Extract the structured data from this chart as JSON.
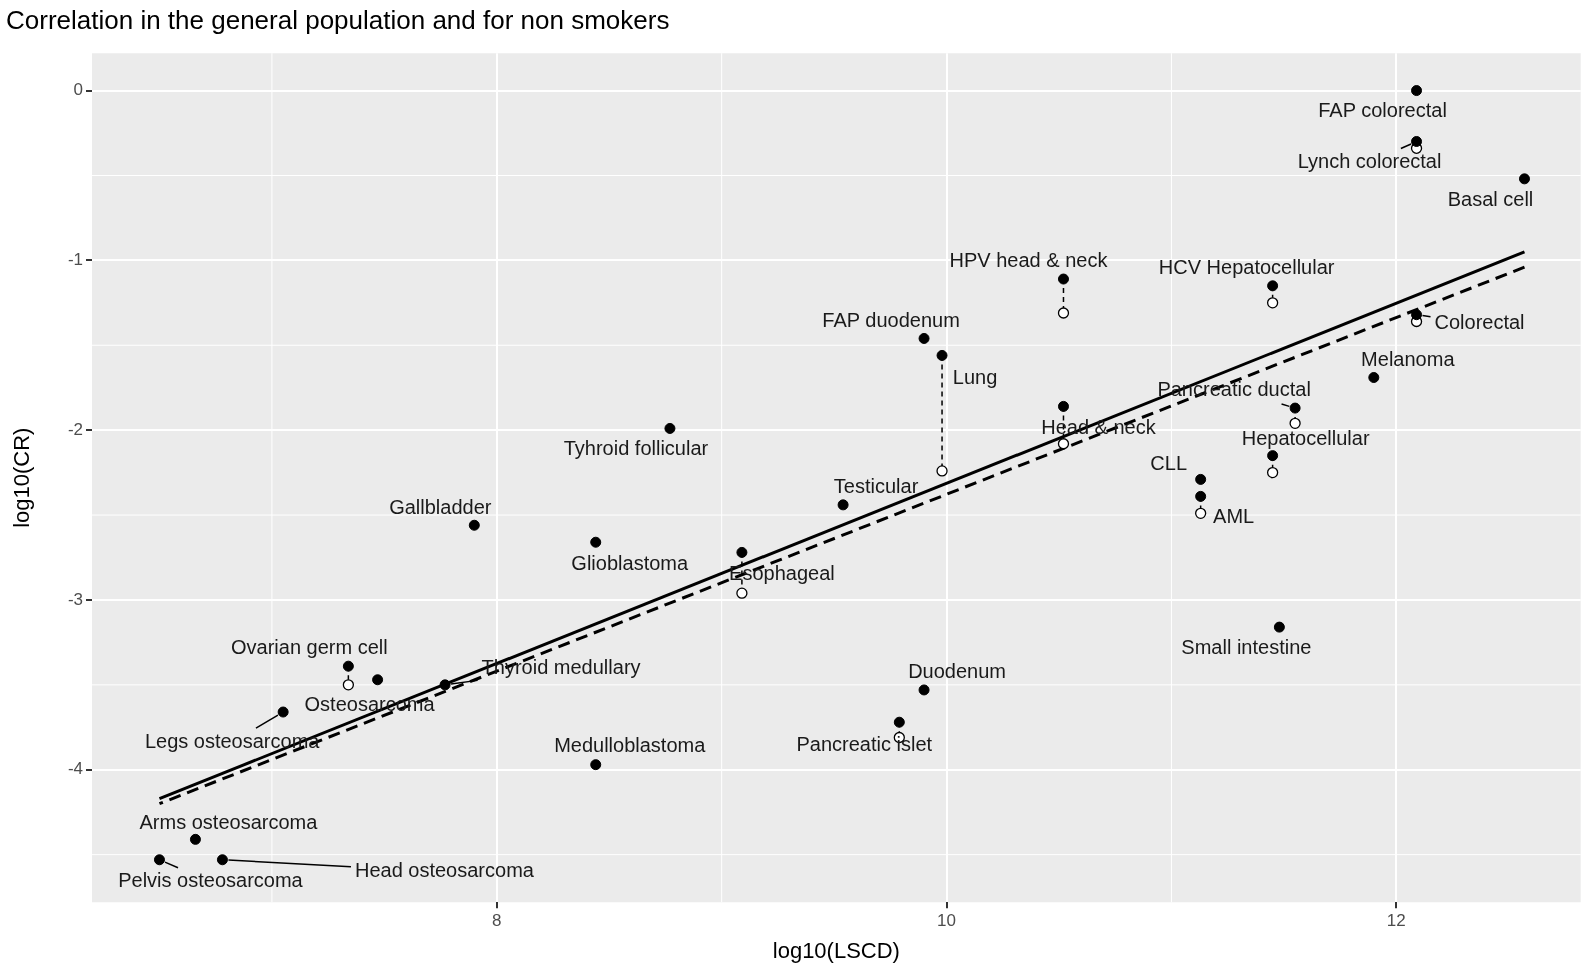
{
  "chart_data": {
    "type": "scatter",
    "title": "Correlation in the general population and for non smokers",
    "xlabel": "log10(LSCD)",
    "ylabel": "log10(CR)",
    "x": [
      12.09,
      12.09,
      12.57,
      10.52,
      11.45,
      12.09,
      9.9,
      9.98,
      11.9,
      11.55,
      10.52,
      8.77,
      11.45,
      11.13,
      11.13,
      9.54,
      7.9,
      8.44,
      9.09,
      11.48,
      7.34,
      7.47,
      7.77,
      7.05,
      9.9,
      9.79,
      8.44,
      6.66,
      6.5,
      6.78
    ],
    "series": [
      {
        "type": "scatter",
        "color": "#000000",
        "values": [
          0.0,
          -0.3,
          -0.52,
          -1.11,
          -1.15,
          -1.32,
          -1.46,
          -1.56,
          -1.69,
          -1.87,
          -1.86,
          -1.99,
          -2.15,
          -2.29,
          -2.39,
          -2.44,
          -2.56,
          -2.66,
          -2.72,
          -3.16,
          -3.39,
          -3.47,
          -3.5,
          -3.66,
          -3.53,
          -3.72,
          -3.97,
          -4.41,
          -4.53,
          -4.53
        ]
      },
      {
        "type": "scatter",
        "color": "#000000",
        "values": [
          null,
          -0.34,
          null,
          -1.31,
          -1.25,
          -1.36,
          null,
          -2.24,
          null,
          -1.96,
          -2.08,
          null,
          -2.25,
          null,
          -2.49,
          null,
          null,
          null,
          -2.96,
          null,
          -3.5,
          null,
          null,
          null,
          null,
          -3.81,
          null,
          null,
          null,
          null
        ]
      },
      {
        "type": "line",
        "color": "#000000",
        "line_style": "solid",
        "marker": "none",
        "values": [
          null,
          null,
          -0.95,
          null,
          null,
          null,
          null,
          null,
          null,
          null,
          null,
          null,
          null,
          null,
          null,
          null,
          null,
          null,
          null,
          null,
          null,
          null,
          null,
          null,
          null,
          null,
          null,
          null,
          -4.17,
          null
        ]
      },
      {
        "type": "line",
        "color": "#000000",
        "line_style": "dashed",
        "marker": "none",
        "values": [
          null,
          null,
          -1.04,
          null,
          null,
          null,
          null,
          null,
          null,
          null,
          null,
          null,
          null,
          null,
          null,
          null,
          null,
          null,
          null,
          null,
          null,
          null,
          null,
          null,
          null,
          null,
          null,
          null,
          -4.2,
          null
        ]
      }
    ],
    "xlim": [
      6.2,
      12.82
    ],
    "xticks": [
      8,
      10,
      12
    ],
    "ylim": [
      -4.78,
      0.22
    ],
    "yticks": [
      -4,
      -3,
      -2,
      -1,
      0
    ],
    "grid": true,
    "legend": false,
    "marker": "circle",
    "annotations": [
      {
        "text": "FAP colorectal",
        "x": 12.09,
        "y": 0.0
      },
      {
        "text": "Lynch colorectal",
        "x": 12.09,
        "y": -0.3
      },
      {
        "text": "Basal cell",
        "x": 12.57,
        "y": -0.52
      },
      {
        "text": "HPV head & neck",
        "x": 10.52,
        "y": -1.11
      },
      {
        "text": "HCV Hepatocellular",
        "x": 11.45,
        "y": -1.15
      },
      {
        "text": "Colorectal",
        "x": 12.09,
        "y": -1.32
      },
      {
        "text": "FAP duodenum",
        "x": 9.9,
        "y": -1.46
      },
      {
        "text": "Lung",
        "x": 9.98,
        "y": -1.56
      },
      {
        "text": "Melanoma",
        "x": 11.9,
        "y": -1.69
      },
      {
        "text": "Pancreatic ductal",
        "x": 11.55,
        "y": -1.87
      },
      {
        "text": "Head & neck",
        "x": 10.52,
        "y": -1.86
      },
      {
        "text": "Tyhroid follicular",
        "x": 8.77,
        "y": -1.99
      },
      {
        "text": "Hepatocellular",
        "x": 11.45,
        "y": -2.15
      },
      {
        "text": "CLL",
        "x": 11.13,
        "y": -2.29
      },
      {
        "text": "AML",
        "x": 11.13,
        "y": -2.39
      },
      {
        "text": "Testicular",
        "x": 9.54,
        "y": -2.44
      },
      {
        "text": "Gallbladder",
        "x": 7.9,
        "y": -2.56
      },
      {
        "text": "Glioblastoma",
        "x": 8.44,
        "y": -2.66
      },
      {
        "text": "Esophageal",
        "x": 9.09,
        "y": -2.72
      },
      {
        "text": "Small intestine",
        "x": 11.48,
        "y": -3.16
      },
      {
        "text": "Ovarian germ cell",
        "x": 7.34,
        "y": -3.39
      },
      {
        "text": "Osteosarcoma",
        "x": 7.47,
        "y": -3.47
      },
      {
        "text": "Thyroid medullary",
        "x": 7.77,
        "y": -3.5
      },
      {
        "text": "Legs osteosarcoma",
        "x": 7.05,
        "y": -3.66
      },
      {
        "text": "Duodenum",
        "x": 9.9,
        "y": -3.53
      },
      {
        "text": "Pancreatic islet",
        "x": 9.79,
        "y": -3.72
      },
      {
        "text": "Medulloblastoma",
        "x": 8.44,
        "y": -3.97
      },
      {
        "text": "Arms osteosarcoma",
        "x": 6.66,
        "y": -4.41
      },
      {
        "text": "Pelvis osteosarcoma",
        "x": 6.5,
        "y": -4.53
      },
      {
        "text": "Head osteosarcoma",
        "x": 6.78,
        "y": -4.53
      }
    ]
  }
}
